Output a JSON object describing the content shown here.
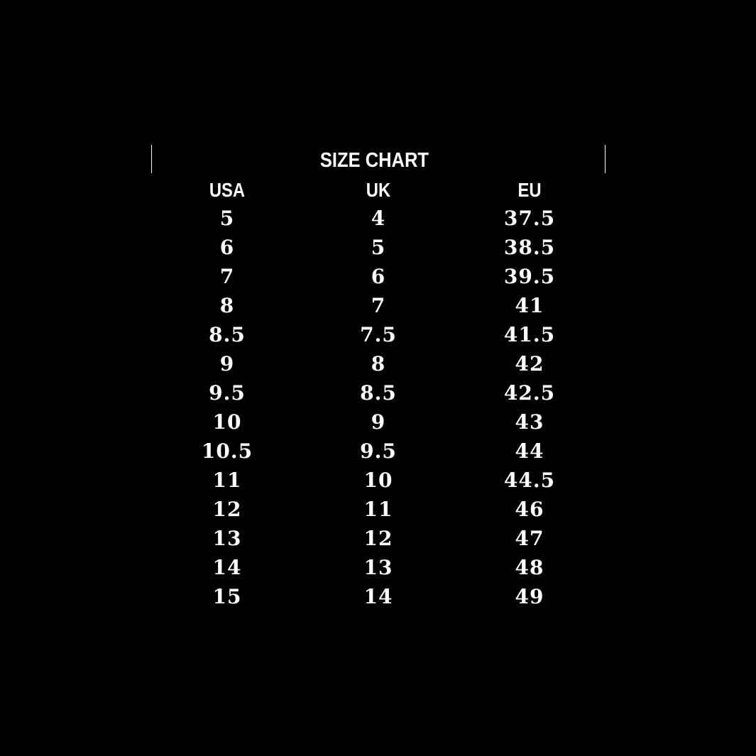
{
  "title": "SIZE CHART",
  "columns": [
    "USA",
    "UK",
    "EU"
  ],
  "rows": [
    [
      "5",
      "4",
      "37.5"
    ],
    [
      "6",
      "5",
      "38.5"
    ],
    [
      "7",
      "6",
      "39.5"
    ],
    [
      "8",
      "7",
      "41"
    ],
    [
      "8.5",
      "7.5",
      "41.5"
    ],
    [
      "9",
      "8",
      "42"
    ],
    [
      "9.5",
      "8.5",
      "42.5"
    ],
    [
      "10",
      "9",
      "43"
    ],
    [
      "10.5",
      "9.5",
      "44"
    ],
    [
      "11",
      "10",
      "44.5"
    ],
    [
      "12",
      "11",
      "46"
    ],
    [
      "13",
      "12",
      "47"
    ],
    [
      "14",
      "13",
      "48"
    ],
    [
      "15",
      "14",
      "49"
    ]
  ],
  "colors": {
    "background": "#000000",
    "text": "#ffffff"
  }
}
